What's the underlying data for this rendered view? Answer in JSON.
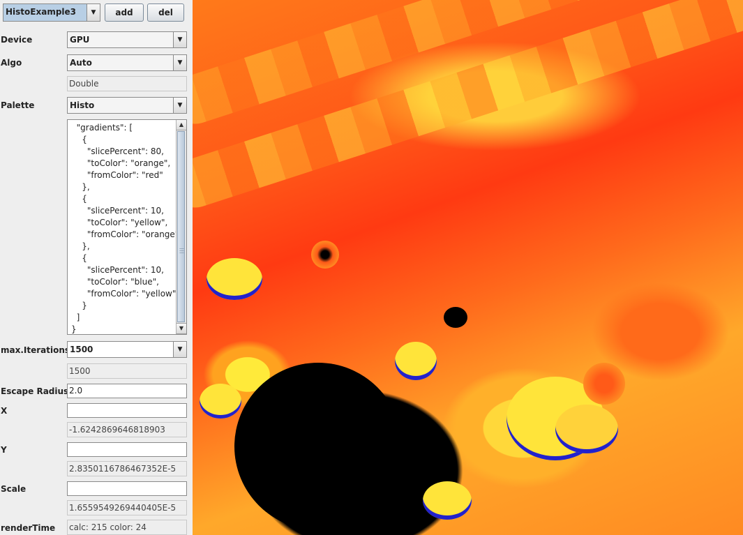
{
  "toolbar": {
    "profile": "HistoExample3",
    "add_label": "add",
    "del_label": "del"
  },
  "device": {
    "label": "Device",
    "value": "GPU"
  },
  "algo": {
    "label": "Algo",
    "value": "Auto",
    "precision": "Double"
  },
  "palette": {
    "label": "Palette",
    "value": "Histo",
    "json": "  \"gradients\": [\n    {\n      \"slicePercent\": 80,\n      \"toColor\": \"orange\",\n      \"fromColor\": \"red\"\n    },\n    {\n      \"slicePercent\": 10,\n      \"toColor\": \"yellow\",\n      \"fromColor\": \"orange\"\n    },\n    {\n      \"slicePercent\": 10,\n      \"toColor\": \"blue\",\n      \"fromColor\": \"yellow\"\n    }\n  ]\n}"
  },
  "iterations": {
    "label": "max.Iterations",
    "value": "1500",
    "current": "1500"
  },
  "escape": {
    "label": "Escape Radius",
    "value": "2.0"
  },
  "x": {
    "label": "X",
    "input": "",
    "value": "-1.6242869646818903"
  },
  "y": {
    "label": "Y",
    "input": "",
    "value": "2.8350116786467352E-5"
  },
  "scale": {
    "label": "Scale",
    "input": "",
    "value": "1.6559549269440405E-5"
  },
  "render": {
    "label": "renderTime",
    "value": "calc: 215 color: 24"
  },
  "icons": {
    "dropdown": "triangle-down",
    "scroll_up": "triangle-up",
    "scroll_down": "triangle-down"
  },
  "colors": {
    "panel_bg": "#eeeeee",
    "selected_combo": "#b8cfe5",
    "fractal_red": "#ff3a12",
    "fractal_orange": "#ff8a22",
    "fractal_yellow": "#ffe43a",
    "fractal_blue": "#2222cc"
  }
}
